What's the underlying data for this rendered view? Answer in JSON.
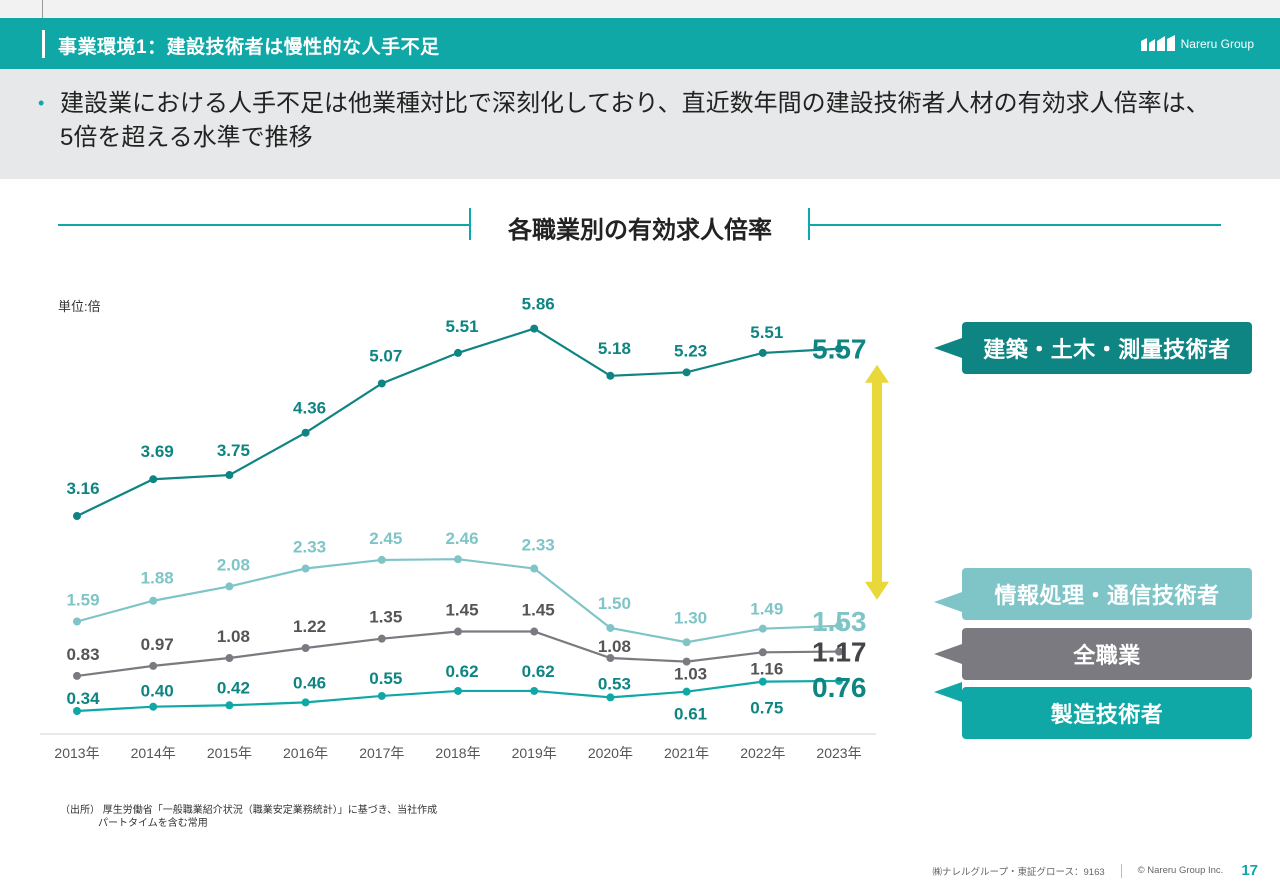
{
  "header": {
    "title": "事業環境1：建設技術者は慢性的な人手不足",
    "logo_text": "Nareru Group"
  },
  "lead": {
    "bullet": "•",
    "text": "建設業における人手不足は他業種対比で深刻化しており、直近数年間の建設技術者人材の有効求人倍率は、5倍を超える水準で推移"
  },
  "chart_title": "各職業別の有効求人倍率",
  "unit_label": "単位:倍",
  "chart_data": {
    "type": "line",
    "title": "各職業別の有効求人倍率",
    "ylabel": "単位:倍",
    "categories": [
      "2013年",
      "2014年",
      "2015年",
      "2016年",
      "2017年",
      "2018年",
      "2019年",
      "2020年",
      "2021年",
      "2022年",
      "2023年"
    ],
    "ylim": [
      0,
      6
    ],
    "grid": false,
    "legend": "right",
    "series": [
      {
        "name": "建築・土木・測量技術者",
        "color": "#0e8582",
        "values": [
          3.16,
          3.69,
          3.75,
          4.36,
          5.07,
          5.51,
          5.86,
          5.18,
          5.23,
          5.51,
          5.57
        ]
      },
      {
        "name": "情報処理・通信技術者",
        "color": "#7fc4c7",
        "values": [
          1.59,
          1.88,
          2.08,
          2.33,
          2.45,
          2.46,
          2.33,
          1.5,
          1.3,
          1.49,
          1.53
        ]
      },
      {
        "name": "全職業",
        "color": "#7a7a80",
        "values": [
          0.83,
          0.97,
          1.08,
          1.22,
          1.35,
          1.45,
          1.45,
          1.08,
          1.03,
          1.16,
          1.17
        ]
      },
      {
        "name": "製造技術者",
        "color": "#0fa8a6",
        "values": [
          0.34,
          0.4,
          0.42,
          0.46,
          0.55,
          0.62,
          0.62,
          0.53,
          0.61,
          0.75,
          0.76
        ]
      }
    ]
  },
  "legend_colors": {
    "construction": "#0e8582",
    "it": "#7fc4c7",
    "all": "#7a7a80",
    "manufacturing": "#0fa8a6",
    "arrow": "#e8d83a"
  },
  "source": {
    "line1": "（出所） 厚生労働省「一般職業紹介状況（職業安定業務統計）」に基づき、当社作成",
    "line2": "パートタイムを含む常用"
  },
  "footer": {
    "company": "㈱ナレルグループ・東証グロース：9163",
    "copyright": "© Nareru Group Inc.",
    "page": "17"
  }
}
